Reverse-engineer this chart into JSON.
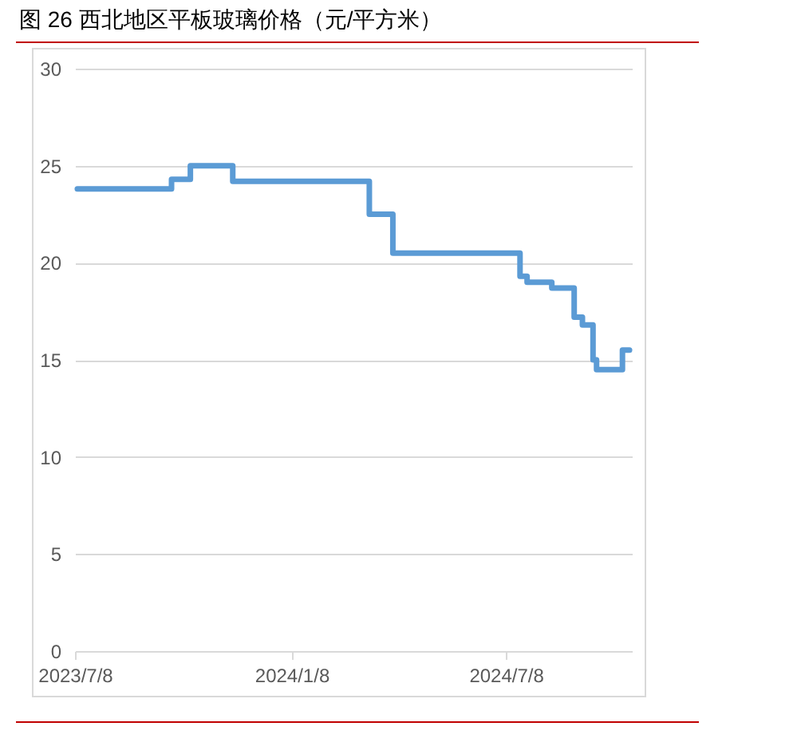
{
  "chart_data": {
    "type": "step",
    "title": "图 26 西北地区平板玻璃价格（元/平方米）",
    "x": [
      "2023-07-10",
      "2023-09-28",
      "2023-10-14",
      "2023-11-19",
      "2024-03-14",
      "2024-04-03",
      "2024-07-20",
      "2024-07-26",
      "2024-08-16",
      "2024-09-04",
      "2024-09-11",
      "2024-09-20",
      "2024-09-23",
      "2024-10-15",
      "2024-10-21"
    ],
    "values": [
      23.8,
      24.3,
      25.0,
      24.2,
      22.5,
      20.5,
      19.3,
      19.0,
      18.7,
      17.2,
      16.8,
      15.0,
      14.5,
      15.5,
      15.5
    ],
    "color": "#5b9bd5",
    "xlim": [
      "2023-07-08",
      "2024-10-23"
    ],
    "xticks": [
      {
        "value": "2023-07-08",
        "label": "2023/7/8"
      },
      {
        "value": "2024-01-08",
        "label": "2024/1/8"
      },
      {
        "value": "2024-07-08",
        "label": "2024/7/8"
      }
    ],
    "ylim": [
      0,
      30
    ],
    "yticks": [
      0,
      5,
      10,
      15,
      20,
      25,
      30
    ],
    "grid": "y"
  }
}
